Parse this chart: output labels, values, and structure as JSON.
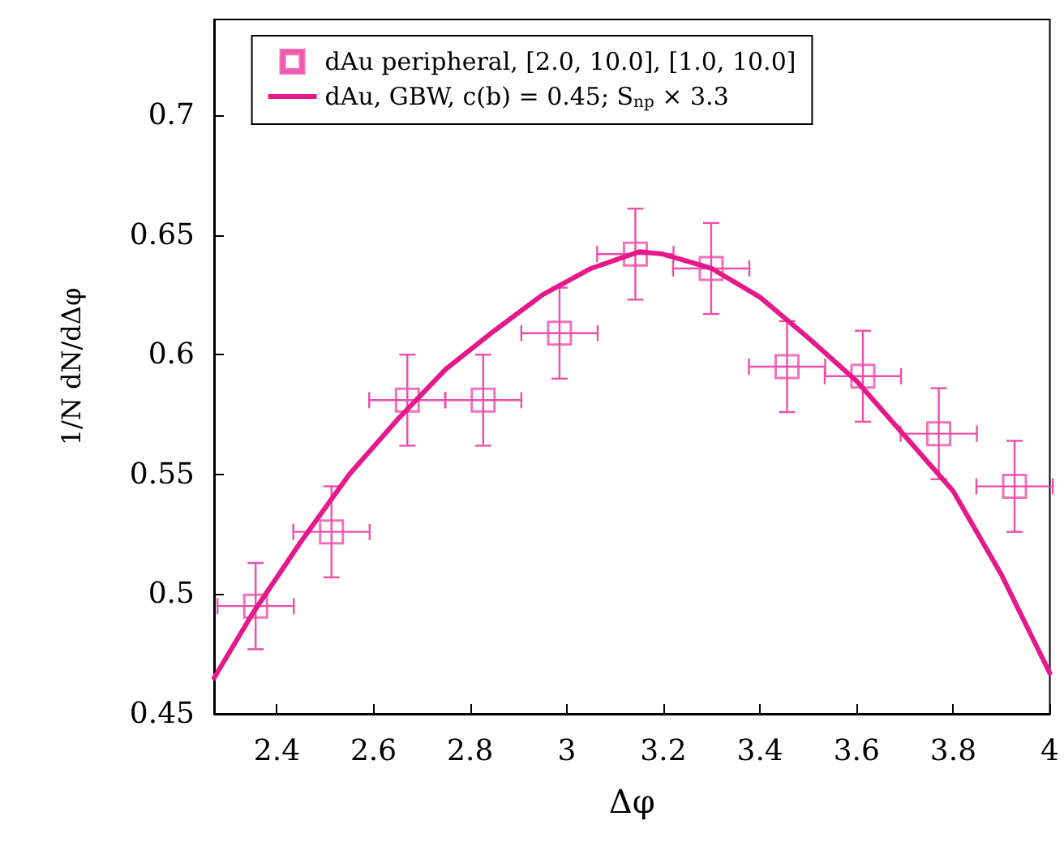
{
  "chart_data": {
    "type": "scatter",
    "xlabel": "Δφ",
    "ylabel": "1/N dN/dΔφ",
    "xlim": [
      2.27,
      4.0
    ],
    "xticks": [
      2.4,
      2.6,
      2.8,
      3,
      3.2,
      3.4,
      3.6,
      3.8,
      4
    ],
    "ylim": [
      0.45,
      0.74
    ],
    "yticks": [
      0.45,
      0.5,
      0.55,
      0.6,
      0.65,
      0.7
    ],
    "legend": "top",
    "grid": false,
    "series": [
      {
        "name": "dAu peripheral, [2.0, 10.0], [1.0, 10.0]",
        "marker": "square",
        "color": "#ee4fa9",
        "x": [
          2.356,
          2.513,
          2.67,
          2.827,
          2.985,
          3.142,
          3.299,
          3.456,
          3.613,
          3.77,
          3.927
        ],
        "values": [
          0.495,
          0.526,
          0.581,
          0.581,
          0.609,
          0.642,
          0.636,
          0.595,
          0.591,
          0.567,
          0.545
        ],
        "errors": [
          0.018,
          0.019,
          0.019,
          0.019,
          0.019,
          0.019,
          0.019,
          0.019,
          0.019,
          0.019,
          0.019
        ],
        "xerrors": [
          0.079,
          0.079,
          0.079,
          0.079,
          0.079,
          0.079,
          0.079,
          0.079,
          0.079,
          0.079,
          0.079
        ]
      },
      {
        "name": "dAu, GBW, c(b) = 0.45; S$_{np}$ × 3.3",
        "type": "line",
        "marker": "none",
        "line_style": "solid",
        "color": "#e5198a",
        "x": [
          2.27,
          2.35,
          2.45,
          2.55,
          2.65,
          2.75,
          2.85,
          2.95,
          3.05,
          3.15,
          3.2,
          3.3,
          3.4,
          3.5,
          3.6,
          3.7,
          3.8,
          3.9,
          4.0
        ],
        "values": [
          0.465,
          0.492,
          0.522,
          0.55,
          0.573,
          0.594,
          0.61,
          0.625,
          0.636,
          0.643,
          0.642,
          0.636,
          0.624,
          0.607,
          0.589,
          0.566,
          0.543,
          0.508,
          0.467
        ]
      }
    ]
  }
}
